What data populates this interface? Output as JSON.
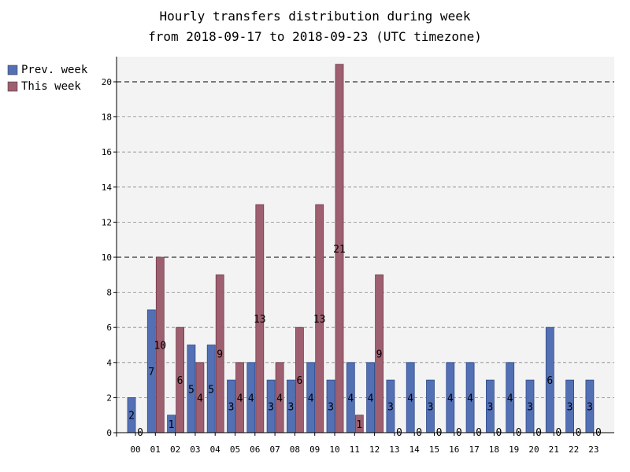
{
  "chart_data": {
    "type": "bar",
    "title": "Hourly transfers distribution during week",
    "subtitle": "from 2018-09-17 to 2018-09-23 (UTC timezone)",
    "xlabel": "",
    "ylabel": "",
    "ylim": [
      0,
      22
    ],
    "yticks": [
      0,
      2,
      4,
      6,
      8,
      10,
      12,
      14,
      16,
      18,
      20
    ],
    "grid": true,
    "legend_position": "top-left",
    "categories": [
      "00",
      "01",
      "02",
      "03",
      "04",
      "05",
      "06",
      "07",
      "08",
      "09",
      "10",
      "11",
      "12",
      "13",
      "14",
      "15",
      "16",
      "17",
      "18",
      "19",
      "20",
      "21",
      "22",
      "23"
    ],
    "series": [
      {
        "name": "Prev. week",
        "color": "#5470b5",
        "values": [
          2,
          7,
          1,
          5,
          5,
          3,
          4,
          3,
          3,
          4,
          3,
          4,
          4,
          3,
          4,
          3,
          4,
          4,
          3,
          4,
          3,
          6,
          3,
          3
        ]
      },
      {
        "name": "This week",
        "color": "#9e6070",
        "values": [
          0,
          10,
          6,
          4,
          9,
          4,
          13,
          4,
          6,
          13,
          21,
          1,
          9,
          0,
          0,
          0,
          0,
          0,
          0,
          0,
          0,
          0,
          0,
          0
        ]
      }
    ]
  }
}
